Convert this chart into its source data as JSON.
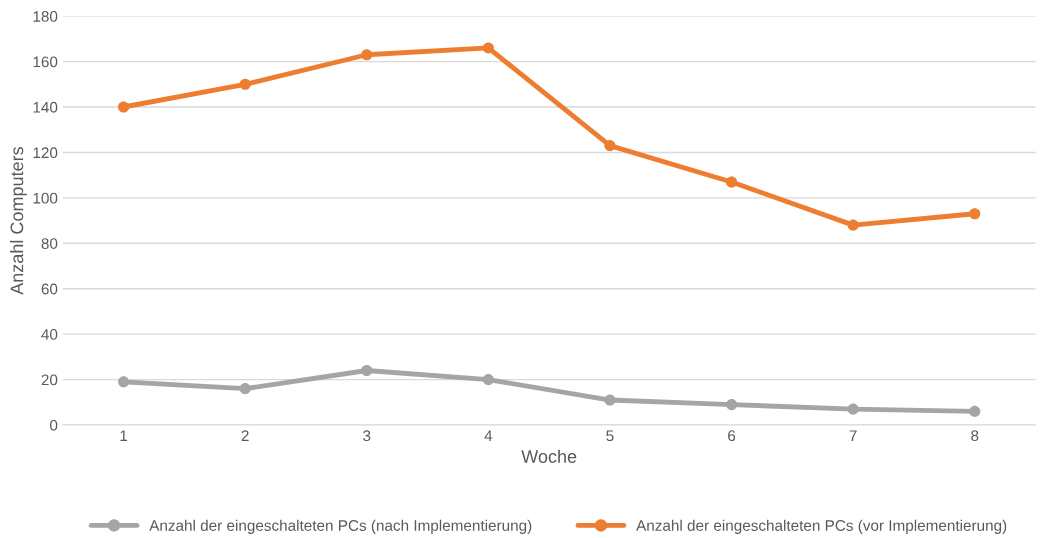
{
  "chart_data": {
    "type": "line",
    "xlabel": "Woche",
    "ylabel": "Anzahl Computers",
    "categories": [
      "1",
      "2",
      "3",
      "4",
      "5",
      "6",
      "7",
      "8"
    ],
    "series": [
      {
        "name": "Anzahl der eingeschalteten PCs (nach Implementierung)",
        "color": "#a5a5a5",
        "values": [
          19,
          16,
          24,
          20,
          11,
          9,
          7,
          6
        ]
      },
      {
        "name": "Anzahl der eingeschalteten PCs (vor Implementierung)",
        "color": "#ed7d31",
        "values": [
          140,
          150,
          163,
          166,
          123,
          107,
          88,
          93
        ]
      }
    ],
    "ylim": [
      0,
      180
    ],
    "yticks": [
      0,
      20,
      40,
      60,
      80,
      100,
      120,
      140,
      160,
      180
    ],
    "grid": "y",
    "legend": "bottom",
    "marker": "circle",
    "line_style": "solid"
  }
}
